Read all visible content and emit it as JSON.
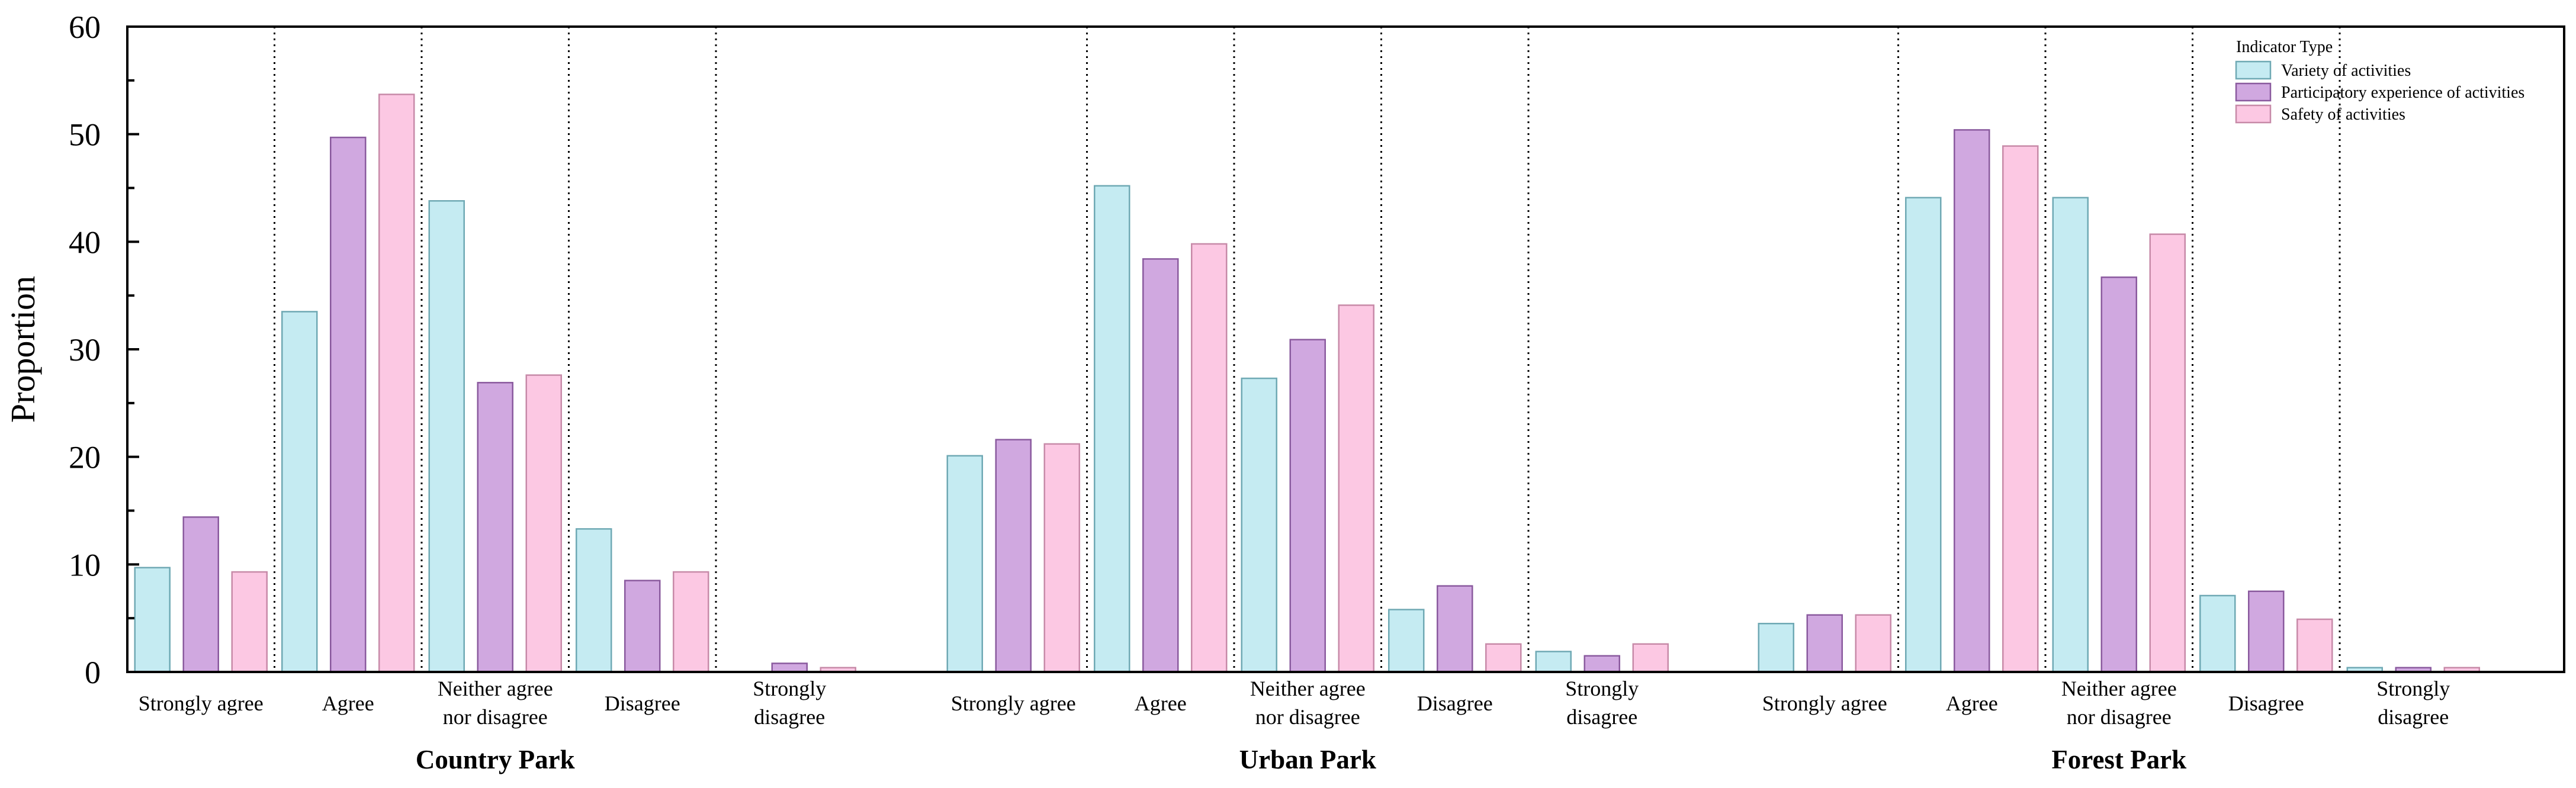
{
  "chart_data": {
    "type": "bar",
    "ylabel": "Proportion",
    "xlabel": "",
    "ylim": [
      0,
      60
    ],
    "y_ticks": [
      "0",
      "10",
      "20",
      "30",
      "40",
      "50",
      "60"
    ],
    "grid": false,
    "legend_position": "top-right",
    "legend": {
      "title": "Indicator Type",
      "entries": [
        "Variety of activities",
        "Participatory experience of activities",
        "Safety of activities"
      ]
    },
    "series_colors": {
      "Variety of activities": {
        "fill": "#c5ebf2",
        "stroke": "#6fa9b4"
      },
      "Participatory experience of activities": {
        "fill": "#d0a8e0",
        "stroke": "#8a5a9e"
      },
      "Safety of activities": {
        "fill": "#fcc8e3",
        "stroke": "#c78aa8"
      }
    },
    "groups": [
      {
        "name": "Country Park",
        "categories": [
          {
            "label": [
              "Strongly agree"
            ],
            "values": [
              9.7,
              14.4,
              9.3
            ]
          },
          {
            "label": [
              "Agree"
            ],
            "values": [
              33.5,
              49.7,
              53.7
            ]
          },
          {
            "label": [
              "Neither agree",
              "nor disagree"
            ],
            "values": [
              43.8,
              26.9,
              27.6
            ]
          },
          {
            "label": [
              "Disagree"
            ],
            "values": [
              13.3,
              8.5,
              9.3
            ]
          },
          {
            "label": [
              "Strongly",
              "disagree"
            ],
            "values": [
              0.0,
              0.8,
              0.4
            ]
          }
        ]
      },
      {
        "name": "Urban Park",
        "categories": [
          {
            "label": [
              "Strongly agree"
            ],
            "values": [
              20.1,
              21.6,
              21.2
            ]
          },
          {
            "label": [
              "Agree"
            ],
            "values": [
              45.2,
              38.4,
              39.8
            ]
          },
          {
            "label": [
              "Neither agree",
              "nor disagree"
            ],
            "values": [
              27.3,
              30.9,
              34.1
            ]
          },
          {
            "label": [
              "Disagree"
            ],
            "values": [
              5.8,
              8.0,
              2.6
            ]
          },
          {
            "label": [
              "Strongly",
              "disagree"
            ],
            "values": [
              1.9,
              1.5,
              2.6
            ]
          }
        ]
      },
      {
        "name": "Forest Park",
        "categories": [
          {
            "label": [
              "Strongly agree"
            ],
            "values": [
              4.5,
              5.3,
              5.3
            ]
          },
          {
            "label": [
              "Agree"
            ],
            "values": [
              44.1,
              50.4,
              48.9
            ]
          },
          {
            "label": [
              "Neither agree",
              "nor disagree"
            ],
            "values": [
              44.1,
              36.7,
              40.7
            ]
          },
          {
            "label": [
              "Disagree"
            ],
            "values": [
              7.1,
              7.5,
              4.9
            ]
          },
          {
            "label": [
              "Strongly",
              "disagree"
            ],
            "values": [
              0.4,
              0.4,
              0.4
            ]
          }
        ]
      }
    ]
  }
}
